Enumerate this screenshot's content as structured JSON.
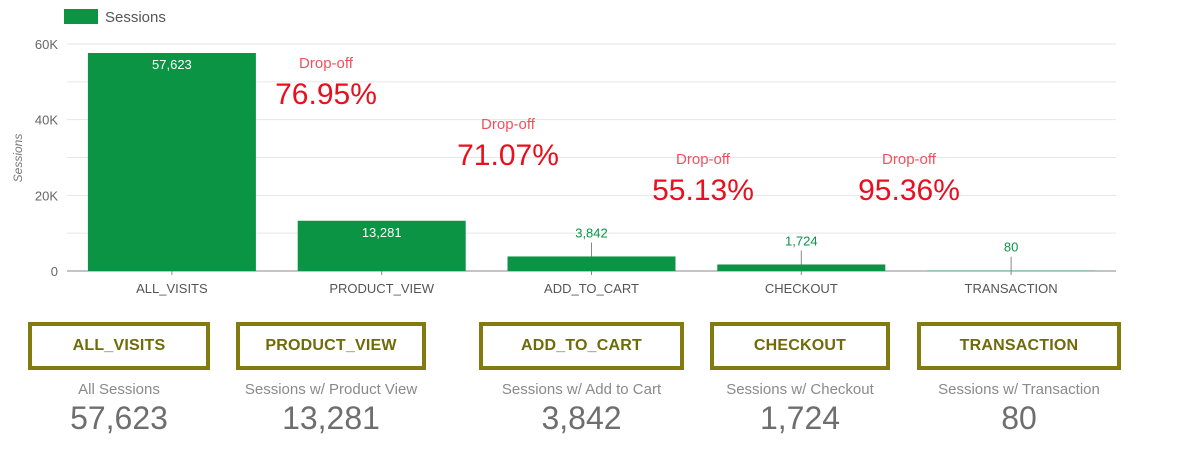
{
  "chart_data": {
    "type": "bar",
    "legend": {
      "label": "Sessions",
      "color": "#0b9444",
      "position": "top-left"
    },
    "ylabel": "Sessions",
    "ylim": [
      0,
      60000
    ],
    "yticks": [
      {
        "value": 0,
        "label": "0"
      },
      {
        "value": 20000,
        "label": "20K"
      },
      {
        "value": 40000,
        "label": "40K"
      },
      {
        "value": 60000,
        "label": "60K"
      }
    ],
    "categories": [
      "ALL_VISITS",
      "PRODUCT_VIEW",
      "ADD_TO_CART",
      "CHECKOUT",
      "TRANSACTION"
    ],
    "series": [
      {
        "name": "Sessions",
        "values": [
          57623,
          13281,
          3842,
          1724,
          80
        ],
        "labels": [
          "57,623",
          "13,281",
          "3,842",
          "1,724",
          "80"
        ]
      }
    ],
    "dropoffs": [
      {
        "title": "Drop-off",
        "value": "76.95%"
      },
      {
        "title": "Drop-off",
        "value": "71.07%"
      },
      {
        "title": "Drop-off",
        "value": "55.13%"
      },
      {
        "title": "Drop-off",
        "value": "95.36%"
      }
    ]
  },
  "stages": [
    {
      "name": "ALL_VISITS",
      "description": "All Sessions",
      "value": "57,623"
    },
    {
      "name": "PRODUCT_VIEW",
      "description": "Sessions w/ Product View",
      "value": "13,281"
    },
    {
      "name": "ADD_TO_CART",
      "description": "Sessions w/ Add to Cart",
      "value": "3,842"
    },
    {
      "name": "CHECKOUT",
      "description": "Sessions w/ Checkout",
      "value": "1,724"
    },
    {
      "name": "TRANSACTION",
      "description": "Sessions w/ Transaction",
      "value": "80"
    }
  ],
  "colors": {
    "bar": "#0b9444",
    "dropoff_title": "#f0525d",
    "dropoff_value": "#e8101e",
    "card_border": "#837a10"
  }
}
